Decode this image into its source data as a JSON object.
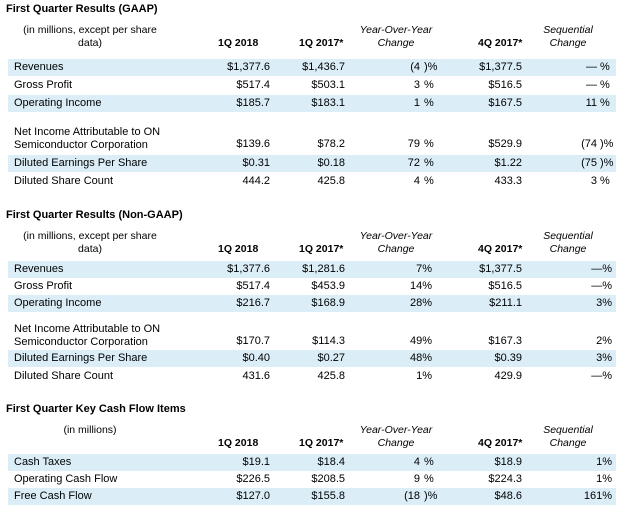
{
  "sections": [
    {
      "title": "First Quarter Results (GAAP)",
      "desc": "(in millions, except per share data)",
      "col_1q18": "1Q 2018",
      "col_1q17": "1Q 2017*",
      "col_yoy": "Year-Over-Year Change",
      "col_4q17": "4Q 2017*",
      "col_seq": "Sequential Change",
      "rows": [
        {
          "label": "Revenues",
          "v1": "$1,377.6",
          "v2": "$1,436.7",
          "yoy": "(4",
          "yoy_unit": ")%",
          "v4": "$1,377.5",
          "seq": "—",
          "seq_unit": "%"
        },
        {
          "label": "Gross Profit",
          "v1": "$517.4",
          "v2": "$503.1",
          "yoy": "3",
          "yoy_unit": "%",
          "v4": "$516.5",
          "seq": "—",
          "seq_unit": "%"
        },
        {
          "label": "Operating Income",
          "v1": "$185.7",
          "v2": "$183.1",
          "yoy": "1",
          "yoy_unit": "%",
          "v4": "$167.5",
          "seq": "11",
          "seq_unit": "%"
        },
        {
          "label": "Net Income Attributable to ON Semiconductor Corporation",
          "v1": "$139.6",
          "v2": "$78.2",
          "yoy": "79",
          "yoy_unit": "%",
          "v4": "$529.9",
          "seq": "(74",
          "seq_unit": ")%"
        },
        {
          "label": "Diluted Earnings Per Share",
          "v1": "$0.31",
          "v2": "$0.18",
          "yoy": "72",
          "yoy_unit": "%",
          "v4": "$1.22",
          "seq": "(75",
          "seq_unit": ")%"
        },
        {
          "label": "Diluted Share Count",
          "v1": "444.2",
          "v2": "425.8",
          "yoy": "4",
          "yoy_unit": "%",
          "v4": "433.3",
          "seq": "3",
          "seq_unit": "%"
        }
      ]
    },
    {
      "title": "First Quarter Results (Non-GAAP)",
      "desc": "(in millions, except per share data)",
      "col_1q18": "1Q 2018",
      "col_1q17": "1Q 2017*",
      "col_yoy": "Year-Over-Year Change",
      "col_4q17": "4Q 2017*",
      "col_seq": "Sequential Change",
      "rows": [
        {
          "label": "Revenues",
          "v1": "$1,377.6",
          "v2": "$1,281.6",
          "yoy": "7%",
          "yoy_unit": "",
          "v4": "$1,377.5",
          "seq": "—%",
          "seq_unit": ""
        },
        {
          "label": "Gross Profit",
          "v1": "$517.4",
          "v2": "$453.9",
          "yoy": "14%",
          "yoy_unit": "",
          "v4": "$516.5",
          "seq": "—%",
          "seq_unit": ""
        },
        {
          "label": "Operating Income",
          "v1": "$216.7",
          "v2": "$168.9",
          "yoy": "28%",
          "yoy_unit": "",
          "v4": "$211.1",
          "seq": "3%",
          "seq_unit": ""
        },
        {
          "label": "Net Income Attributable to ON Semiconductor Corporation",
          "v1": "$170.7",
          "v2": "$114.3",
          "yoy": "49%",
          "yoy_unit": "",
          "v4": "$167.3",
          "seq": "2%",
          "seq_unit": ""
        },
        {
          "label": "Diluted Earnings Per Share",
          "v1": "$0.40",
          "v2": "$0.27",
          "yoy": "48%",
          "yoy_unit": "",
          "v4": "$0.39",
          "seq": "3%",
          "seq_unit": ""
        },
        {
          "label": "Diluted Share Count",
          "v1": "431.6",
          "v2": "425.8",
          "yoy": "1%",
          "yoy_unit": "",
          "v4": "429.9",
          "seq": "—%",
          "seq_unit": ""
        }
      ]
    },
    {
      "title": "First Quarter Key Cash Flow Items",
      "desc": "(in millions)",
      "col_1q18": "1Q 2018",
      "col_1q17": "1Q 2017*",
      "col_yoy": "Year-Over-Year Change",
      "col_4q17": "4Q 2017*",
      "col_seq": "Sequential Change",
      "rows": [
        {
          "label": "Cash Taxes",
          "v1": "$19.1",
          "v2": "$18.4",
          "yoy": "4",
          "yoy_unit": "%",
          "v4": "$18.9",
          "seq": "1%",
          "seq_unit": ""
        },
        {
          "label": "Operating Cash Flow",
          "v1": "$226.5",
          "v2": "$208.5",
          "yoy": "9",
          "yoy_unit": "%",
          "v4": "$224.3",
          "seq": "1%",
          "seq_unit": ""
        },
        {
          "label": "Free Cash Flow",
          "v1": "$127.0",
          "v2": "$155.8",
          "yoy": "(18",
          "yoy_unit": ")%",
          "v4": "$48.6",
          "seq": "161%",
          "seq_unit": ""
        }
      ]
    }
  ]
}
